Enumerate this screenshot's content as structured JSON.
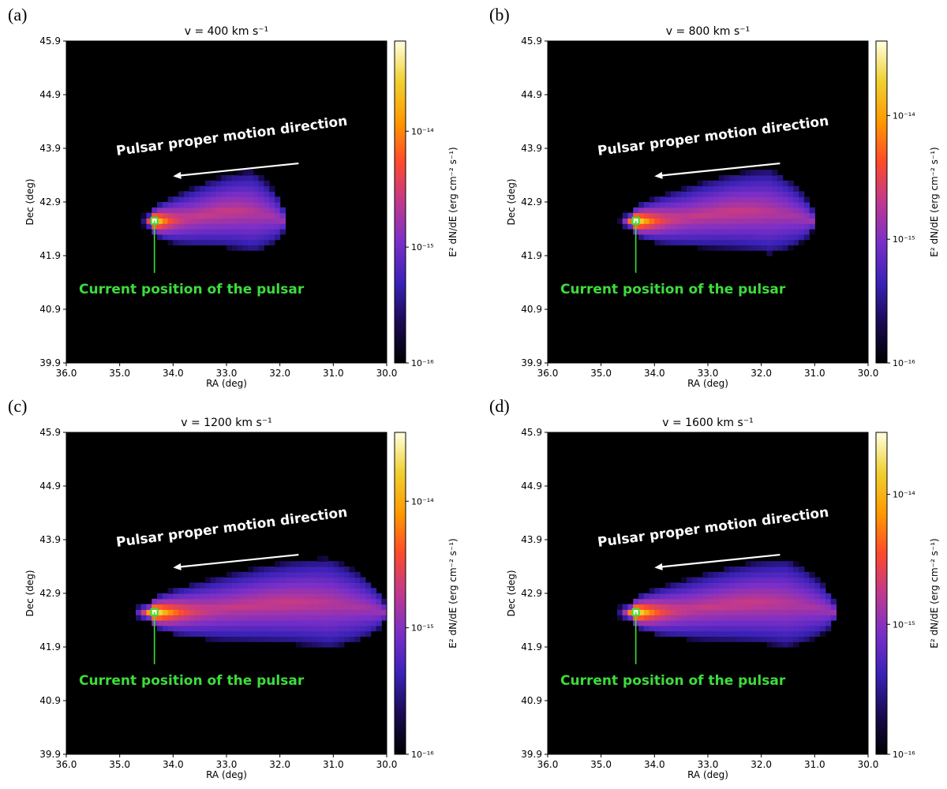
{
  "colors": {
    "background": "#000000",
    "pulsar_marker": "#3ddc3d",
    "annotation_arrow": "#ffffff",
    "colormap": [
      "#000000",
      "#1a0a52",
      "#3a22b8",
      "#7a2fc8",
      "#c0398e",
      "#ff4a2a",
      "#ff9a00",
      "#f0d030",
      "#ffffe0"
    ]
  },
  "chart_data": [
    {
      "panel_label": "(a)",
      "type": "heatmap",
      "title": "v = 400 km s⁻¹",
      "xlabel": "RA (deg)",
      "ylabel": "Dec (deg)",
      "xlim": [
        36.0,
        30.0
      ],
      "ylim": [
        39.9,
        45.9
      ],
      "xticks": [
        "36.0",
        "35.0",
        "34.0",
        "33.0",
        "32.0",
        "31.0",
        "30.0"
      ],
      "yticks": [
        "39.9",
        "40.9",
        "41.9",
        "42.9",
        "43.9",
        "44.9",
        "45.9"
      ],
      "colorbar_label": "E² dN/dE (erg cm⁻² s⁻¹)",
      "colorbar_scale": "log",
      "colorbar_range": [
        1e-16,
        6e-14
      ],
      "colorbar_ticks": [
        "10⁻¹⁶",
        "10⁻¹⁵",
        "10⁻¹⁴"
      ],
      "pulsar_ra": 34.35,
      "pulsar_dec": 42.55,
      "nebula_tail_ra_end": 31.9,
      "nebula_dec_halfwidth": 0.72,
      "annotations": {
        "motion": "Pulsar proper motion direction",
        "pulsar": "Current position of the pulsar"
      }
    },
    {
      "panel_label": "(b)",
      "type": "heatmap",
      "title": "v = 800 km s⁻¹",
      "xlabel": "RA (deg)",
      "ylabel": "Dec (deg)",
      "xlim": [
        36.0,
        30.0
      ],
      "ylim": [
        39.9,
        45.9
      ],
      "xticks": [
        "36.0",
        "35.0",
        "34.0",
        "33.0",
        "32.0",
        "31.0",
        "30.0"
      ],
      "yticks": [
        "39.9",
        "40.9",
        "41.9",
        "42.9",
        "43.9",
        "44.9",
        "45.9"
      ],
      "colorbar_label": "E² dN/dE (erg cm⁻² s⁻¹)",
      "colorbar_scale": "log",
      "colorbar_range": [
        1e-16,
        4e-14
      ],
      "colorbar_ticks": [
        "10⁻¹⁶",
        "10⁻¹⁵",
        "10⁻¹⁴"
      ],
      "pulsar_ra": 34.35,
      "pulsar_dec": 42.55,
      "nebula_tail_ra_end": 31.0,
      "nebula_dec_halfwidth": 0.75,
      "annotations": {
        "motion": "Pulsar proper motion direction",
        "pulsar": "Current position of the pulsar"
      }
    },
    {
      "panel_label": "(c)",
      "type": "heatmap",
      "title": "v = 1200 km s⁻¹",
      "xlabel": "RA (deg)",
      "ylabel": "Dec (deg)",
      "xlim": [
        36.0,
        30.0
      ],
      "ylim": [
        39.9,
        45.9
      ],
      "xticks": [
        "36.0",
        "35.0",
        "34.0",
        "33.0",
        "32.0",
        "31.0",
        "30.0"
      ],
      "yticks": [
        "39.9",
        "40.9",
        "41.9",
        "42.9",
        "43.9",
        "44.9",
        "45.9"
      ],
      "colorbar_label": "E² dN/dE (erg cm⁻² s⁻¹)",
      "colorbar_scale": "log",
      "colorbar_range": [
        1e-16,
        3.5e-14
      ],
      "colorbar_ticks": [
        "10⁻¹⁶",
        "10⁻¹⁵",
        "10⁻¹⁴"
      ],
      "pulsar_ra": 34.35,
      "pulsar_dec": 42.55,
      "nebula_tail_ra_end": 30.0,
      "nebula_dec_halfwidth": 0.8,
      "annotations": {
        "motion": "Pulsar proper motion direction",
        "pulsar": "Current position of the pulsar"
      }
    },
    {
      "panel_label": "(d)",
      "type": "heatmap",
      "title": "v = 1600 km s⁻¹",
      "xlabel": "RA (deg)",
      "ylabel": "Dec (deg)",
      "xlim": [
        36.0,
        30.0
      ],
      "ylim": [
        39.9,
        45.9
      ],
      "xticks": [
        "36.0",
        "35.0",
        "34.0",
        "33.0",
        "32.0",
        "31.0",
        "30.0"
      ],
      "yticks": [
        "39.9",
        "40.9",
        "41.9",
        "42.9",
        "43.9",
        "44.9",
        "45.9"
      ],
      "colorbar_label": "E² dN/dE (erg cm⁻² s⁻¹)",
      "colorbar_scale": "log",
      "colorbar_range": [
        1e-16,
        3e-14
      ],
      "colorbar_ticks": [
        "10⁻¹⁶",
        "10⁻¹⁵",
        "10⁻¹⁴"
      ],
      "pulsar_ra": 34.35,
      "pulsar_dec": 42.55,
      "nebula_tail_ra_end": 30.6,
      "nebula_dec_halfwidth": 0.78,
      "annotations": {
        "motion": "Pulsar proper motion direction",
        "pulsar": "Current position of the pulsar"
      }
    }
  ]
}
